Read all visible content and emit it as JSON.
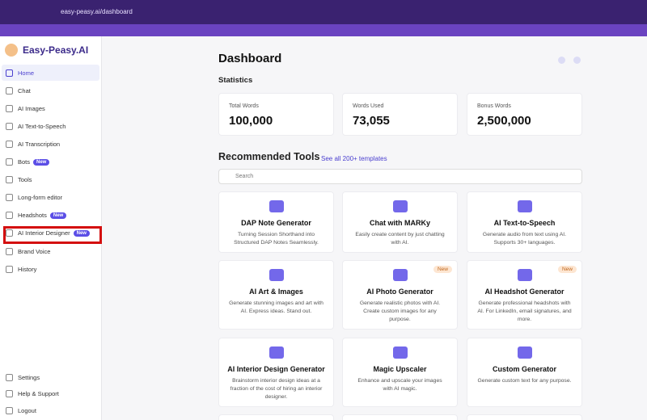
{
  "browser": {
    "url": "easy-peasy.ai/dashboard"
  },
  "sidebar": {
    "brand": "Easy-Peasy.AI",
    "nav": [
      {
        "label": "Home"
      },
      {
        "label": "Chat"
      },
      {
        "label": "AI Images"
      },
      {
        "label": "AI Text-to-Speech"
      },
      {
        "label": "AI Transcription"
      },
      {
        "label": "Bots",
        "badge": "New"
      },
      {
        "label": "Tools"
      },
      {
        "label": "Long-form editor"
      },
      {
        "label": "Headshots",
        "badge": "New"
      },
      {
        "label": "AI Interior Designer",
        "badge": "New"
      },
      {
        "label": "Brand Voice"
      },
      {
        "label": "History"
      }
    ],
    "footer": [
      {
        "label": "Settings"
      },
      {
        "label": "Help & Support"
      },
      {
        "label": "Logout"
      }
    ]
  },
  "main": {
    "title": "Dashboard",
    "stats_heading": "Statistics",
    "stats": [
      {
        "label": "Total Words",
        "value": "100,000"
      },
      {
        "label": "Words Used",
        "value": "73,055"
      },
      {
        "label": "Bonus Words",
        "value": "2,500,000"
      }
    ],
    "tools_heading": "Recommended Tools",
    "tools_link": "See all 200+ templates",
    "search_placeholder": "Search",
    "tools": [
      {
        "title": "DAP Note Generator",
        "description": "Turning Session Shorthand into Structured DAP Notes Seamlessly."
      },
      {
        "title": "Chat with MARKy",
        "description": "Easily create content by just chatting with AI."
      },
      {
        "title": "AI Text-to-Speech",
        "description": "Generate audio from text using AI. Supports 30+ languages."
      },
      {
        "title": "AI Art & Images",
        "description": "Generate stunning images and art with AI. Express ideas. Stand out."
      },
      {
        "title": "AI Photo Generator",
        "description": "Generate realistic photos with AI. Create custom images for any purpose.",
        "badge": "New"
      },
      {
        "title": "AI Headshot Generator",
        "description": "Generate professional headshots with AI. For LinkedIn, email signatures, and more.",
        "badge": "New"
      },
      {
        "title": "AI Interior Design Generator",
        "description": "Brainstorm interior design ideas at a fraction of the cost of hiring an interior designer."
      },
      {
        "title": "Magic Upscaler",
        "description": "Enhance and upscale your images with AI magic."
      },
      {
        "title": "Custom Generator",
        "description": "Generate custom text for any purpose."
      }
    ]
  }
}
